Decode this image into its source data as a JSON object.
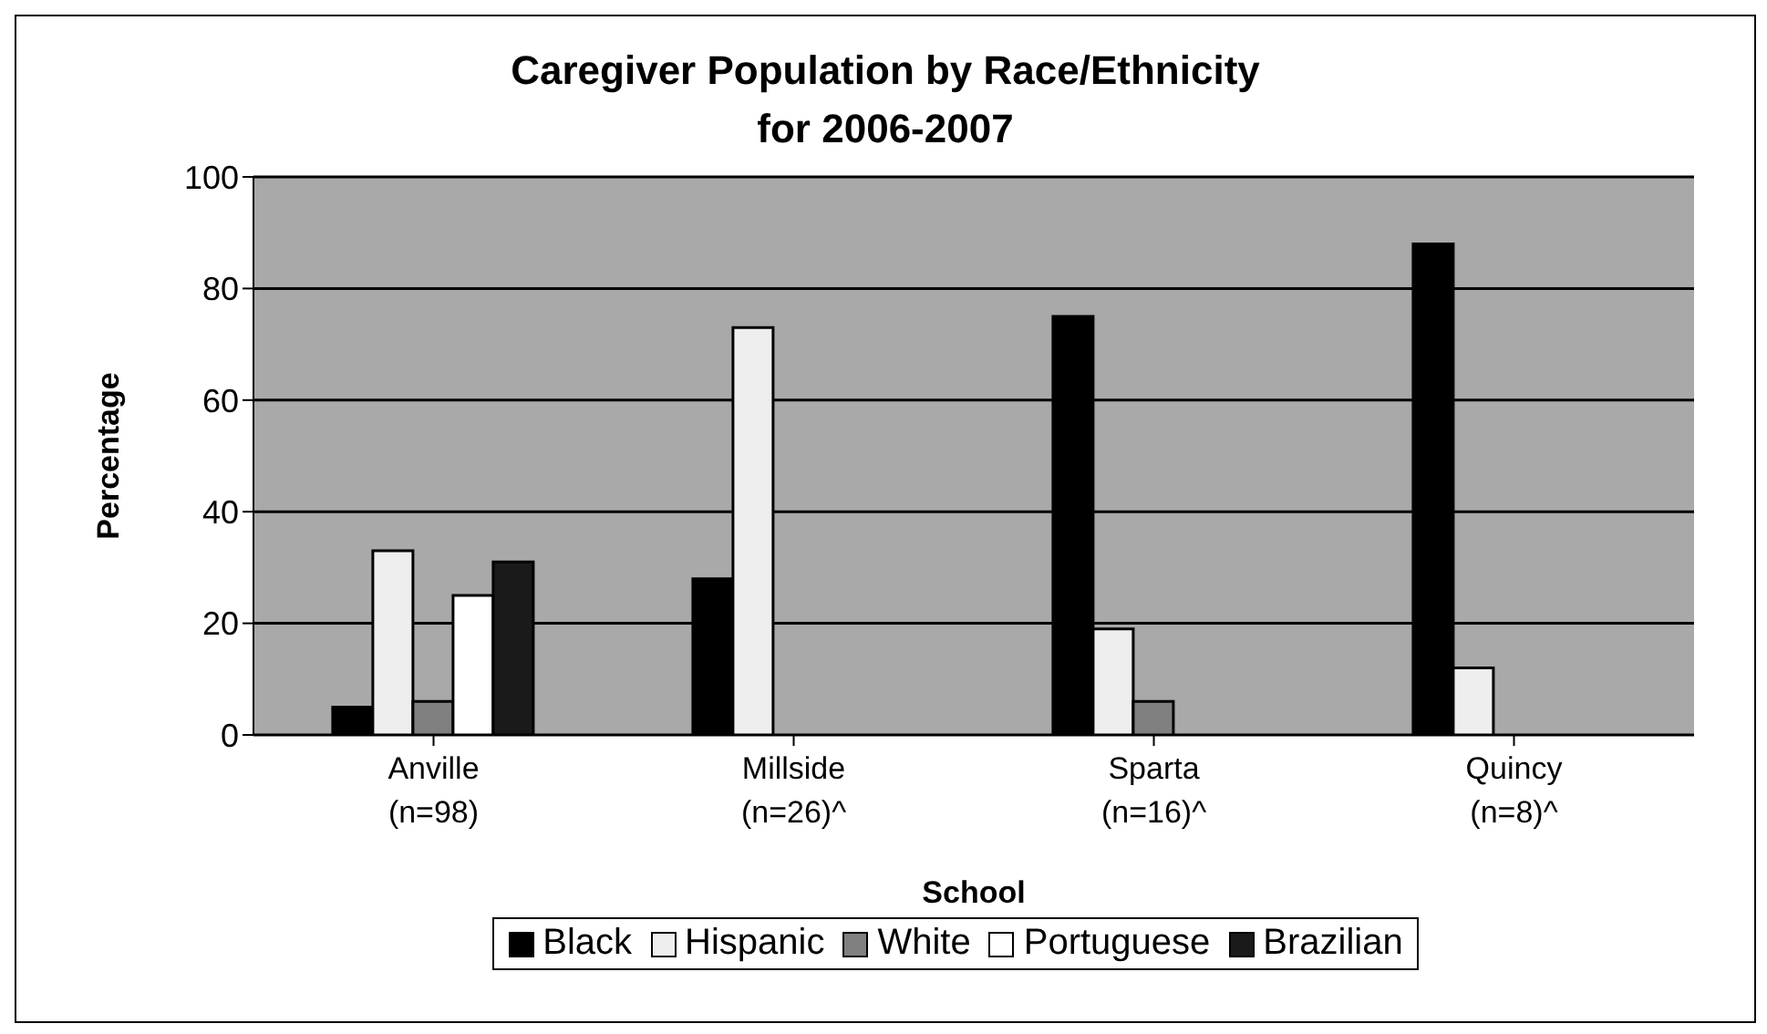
{
  "chart_data": {
    "type": "bar",
    "title": "Caregiver Population by Race/Ethnicity\nfor 2006-2007",
    "xlabel": "School",
    "ylabel": "Percentage",
    "categories": [
      "Anville\n(n=98)",
      "Millside\n(n=26)^",
      "Sparta\n(n=16)^",
      "Quincy\n(n=8)^"
    ],
    "series": [
      {
        "name": "Black",
        "color": "#000000",
        "values": [
          5,
          28,
          75,
          88
        ]
      },
      {
        "name": "Hispanic",
        "color": "#eeeeee",
        "values": [
          33,
          73,
          19,
          12
        ]
      },
      {
        "name": "White",
        "color": "#808080",
        "values": [
          6,
          0,
          6,
          0
        ]
      },
      {
        "name": "Portuguese",
        "color": "#ffffff",
        "values": [
          25,
          0,
          0,
          0
        ]
      },
      {
        "name": "Brazilian",
        "color": "#1a1a1a",
        "values": [
          31,
          0,
          0,
          0
        ]
      }
    ],
    "ylim": [
      0,
      100
    ],
    "yticks": [
      0,
      20,
      40,
      60,
      80,
      100
    ],
    "grid": "y",
    "legend": "bottom"
  }
}
